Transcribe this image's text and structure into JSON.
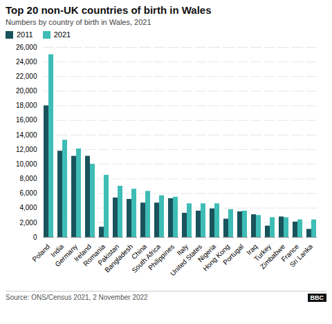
{
  "chart_data": {
    "type": "bar",
    "title": "Top 20 non-UK countries of birth in Wales",
    "subtitle": "Numbers by country of birth in Wales, 2021",
    "source": "Source: ONS/Census 2021, 2 November 2022",
    "annotations": [
      "BBC"
    ],
    "categories": [
      "Poland",
      "India",
      "Germany",
      "Ireland",
      "Romania",
      "Pakistan",
      "Bangladesh",
      "China",
      "South Africa",
      "Philippines",
      "Italy",
      "United States",
      "Nigeria",
      "Hong Kong",
      "Portugal",
      "Iraq",
      "Turkey",
      "Zimbabwe",
      "France",
      "Sri Lanka"
    ],
    "series": [
      {
        "name": "2011",
        "color": "#1a535c",
        "values": [
          18000,
          11800,
          11100,
          11100,
          1400,
          5400,
          5200,
          4700,
          4700,
          5300,
          3300,
          3600,
          3900,
          2500,
          3500,
          3100,
          1550,
          2800,
          2100,
          1100
        ]
      },
      {
        "name": "2021",
        "color": "#3dbdb5",
        "values": [
          25000,
          13300,
          12100,
          10000,
          8500,
          7000,
          6600,
          6300,
          5700,
          5500,
          4600,
          4600,
          4600,
          3800,
          3600,
          3000,
          2700,
          2700,
          2400,
          2400
        ]
      }
    ],
    "ylim": [
      0,
      26000
    ],
    "yticks": [
      0,
      {
        "value": 2000,
        "label": "2,000"
      },
      {
        "value": 4000,
        "label": "4,000"
      },
      {
        "value": 6000,
        "label": "6,000"
      },
      {
        "value": 8000,
        "label": "8,000"
      },
      {
        "value": 10000,
        "label": "10,000"
      },
      {
        "value": 12000,
        "label": "12,000"
      },
      {
        "value": 14000,
        "label": "14,000"
      },
      {
        "value": 16000,
        "label": "16,000"
      },
      {
        "value": 18000,
        "label": "18,000"
      },
      {
        "value": 20000,
        "label": "20,000"
      },
      {
        "value": 22000,
        "label": "22,000"
      },
      {
        "value": 24000,
        "label": "24,000"
      },
      {
        "value": 26000,
        "label": "26,000"
      }
    ],
    "grid": true,
    "legend": "upper left"
  }
}
